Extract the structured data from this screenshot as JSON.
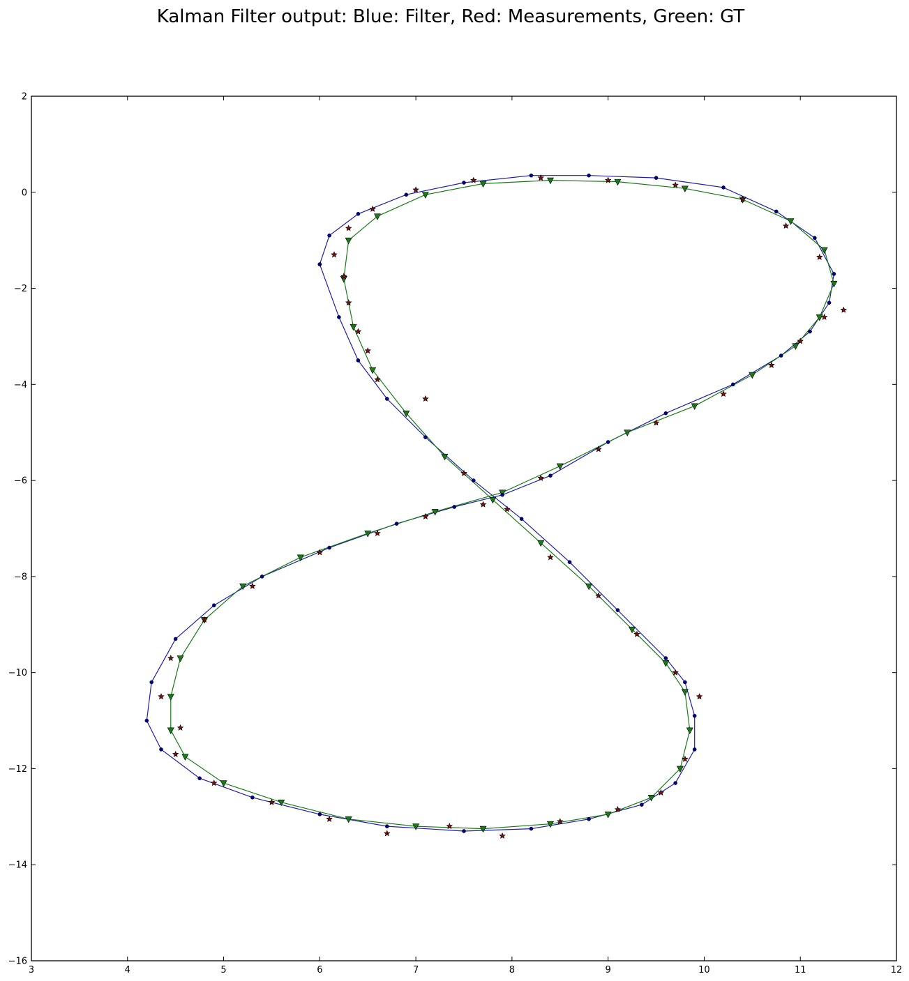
{
  "chart_data": {
    "type": "line",
    "title": "Kalman Filter output: Blue: Filter, Red: Measurements, Green: GT",
    "xlabel": "",
    "ylabel": "",
    "xlim": [
      3,
      12
    ],
    "ylim": [
      -16,
      2
    ],
    "xticks": [
      "3",
      "4",
      "5",
      "6",
      "7",
      "8",
      "9",
      "10",
      "11",
      "12"
    ],
    "yticks": [
      "2",
      "0",
      "−2",
      "−4",
      "−6",
      "−8",
      "−10",
      "−12",
      "−14",
      "−16"
    ],
    "grid": false,
    "colors": {
      "filter": "#1f1fa8",
      "filter_marker": "#000080",
      "measurement": "#7a1010",
      "gt": "#1a7a1a"
    },
    "series": [
      {
        "name": "Filter",
        "marker": "dot",
        "points": [
          [
            6.0,
            -1.5
          ],
          [
            6.1,
            -0.9
          ],
          [
            6.4,
            -0.45
          ],
          [
            6.9,
            -0.05
          ],
          [
            7.5,
            0.2
          ],
          [
            8.2,
            0.35
          ],
          [
            8.8,
            0.35
          ],
          [
            9.5,
            0.3
          ],
          [
            10.2,
            0.1
          ],
          [
            10.75,
            -0.4
          ],
          [
            11.15,
            -0.95
          ],
          [
            11.35,
            -1.7
          ],
          [
            11.3,
            -2.3
          ],
          [
            11.1,
            -2.9
          ],
          [
            10.8,
            -3.4
          ],
          [
            10.3,
            -4.0
          ],
          [
            9.6,
            -4.6
          ],
          [
            9.0,
            -5.2
          ],
          [
            8.4,
            -5.9
          ],
          [
            7.9,
            -6.3
          ],
          [
            7.4,
            -6.55
          ],
          [
            6.8,
            -6.9
          ],
          [
            6.1,
            -7.4
          ],
          [
            5.4,
            -8.0
          ],
          [
            4.9,
            -8.6
          ],
          [
            4.5,
            -9.3
          ],
          [
            4.25,
            -10.2
          ],
          [
            4.2,
            -11.0
          ],
          [
            4.35,
            -11.6
          ],
          [
            4.75,
            -12.2
          ],
          [
            5.3,
            -12.6
          ],
          [
            6.0,
            -12.95
          ],
          [
            6.7,
            -13.2
          ],
          [
            7.5,
            -13.3
          ],
          [
            8.2,
            -13.25
          ],
          [
            8.8,
            -13.05
          ],
          [
            9.35,
            -12.75
          ],
          [
            9.7,
            -12.3
          ],
          [
            9.9,
            -11.6
          ],
          [
            9.9,
            -10.9
          ],
          [
            9.8,
            -10.2
          ],
          [
            9.6,
            -9.7
          ],
          [
            9.1,
            -8.7
          ],
          [
            8.6,
            -7.7
          ],
          [
            8.1,
            -6.8
          ],
          [
            7.6,
            -6.0
          ],
          [
            7.1,
            -5.1
          ],
          [
            6.7,
            -4.3
          ],
          [
            6.4,
            -3.5
          ],
          [
            6.2,
            -2.6
          ],
          [
            6.0,
            -1.5
          ]
        ]
      },
      {
        "name": "Measurements",
        "marker": "star",
        "points": [
          [
            6.15,
            -1.3
          ],
          [
            6.3,
            -0.75
          ],
          [
            6.55,
            -0.35
          ],
          [
            7.0,
            0.05
          ],
          [
            7.6,
            0.25
          ],
          [
            8.3,
            0.3
          ],
          [
            9.0,
            0.25
          ],
          [
            9.7,
            0.15
          ],
          [
            10.4,
            -0.15
          ],
          [
            10.85,
            -0.7
          ],
          [
            11.2,
            -1.35
          ],
          [
            11.45,
            -2.45
          ],
          [
            11.25,
            -2.6
          ],
          [
            11.0,
            -3.1
          ],
          [
            10.7,
            -3.6
          ],
          [
            10.2,
            -4.2
          ],
          [
            9.5,
            -4.8
          ],
          [
            8.9,
            -5.35
          ],
          [
            8.3,
            -5.95
          ],
          [
            7.7,
            -6.5
          ],
          [
            7.1,
            -6.75
          ],
          [
            6.6,
            -7.1
          ],
          [
            6.0,
            -7.5
          ],
          [
            5.3,
            -8.2
          ],
          [
            4.8,
            -8.9
          ],
          [
            4.45,
            -9.7
          ],
          [
            4.35,
            -10.5
          ],
          [
            4.55,
            -11.15
          ],
          [
            4.5,
            -11.7
          ],
          [
            4.9,
            -12.3
          ],
          [
            5.5,
            -12.7
          ],
          [
            6.1,
            -13.05
          ],
          [
            6.7,
            -13.35
          ],
          [
            7.35,
            -13.2
          ],
          [
            7.9,
            -13.4
          ],
          [
            8.5,
            -13.1
          ],
          [
            9.1,
            -12.85
          ],
          [
            9.55,
            -12.5
          ],
          [
            9.8,
            -11.8
          ],
          [
            9.95,
            -10.5
          ],
          [
            9.7,
            -10.0
          ],
          [
            9.3,
            -9.2
          ],
          [
            8.9,
            -8.4
          ],
          [
            8.4,
            -7.6
          ],
          [
            7.95,
            -6.6
          ],
          [
            7.5,
            -5.85
          ],
          [
            7.1,
            -4.3
          ],
          [
            6.6,
            -3.9
          ],
          [
            6.5,
            -3.3
          ],
          [
            6.4,
            -2.9
          ],
          [
            6.3,
            -2.3
          ],
          [
            6.25,
            -1.75
          ]
        ]
      },
      {
        "name": "GT",
        "marker": "triangle",
        "points": [
          [
            6.25,
            -1.8
          ],
          [
            6.3,
            -1.0
          ],
          [
            6.6,
            -0.5
          ],
          [
            7.1,
            -0.05
          ],
          [
            7.7,
            0.18
          ],
          [
            8.4,
            0.25
          ],
          [
            9.1,
            0.22
          ],
          [
            9.8,
            0.08
          ],
          [
            10.4,
            -0.15
          ],
          [
            10.9,
            -0.6
          ],
          [
            11.25,
            -1.2
          ],
          [
            11.35,
            -1.9
          ],
          [
            11.2,
            -2.6
          ],
          [
            10.95,
            -3.2
          ],
          [
            10.5,
            -3.8
          ],
          [
            9.9,
            -4.45
          ],
          [
            9.2,
            -5.0
          ],
          [
            8.5,
            -5.7
          ],
          [
            7.9,
            -6.25
          ],
          [
            7.2,
            -6.65
          ],
          [
            6.5,
            -7.1
          ],
          [
            5.8,
            -7.6
          ],
          [
            5.2,
            -8.2
          ],
          [
            4.8,
            -8.9
          ],
          [
            4.55,
            -9.7
          ],
          [
            4.45,
            -10.5
          ],
          [
            4.45,
            -11.2
          ],
          [
            4.6,
            -11.75
          ],
          [
            5.0,
            -12.3
          ],
          [
            5.6,
            -12.7
          ],
          [
            6.3,
            -13.05
          ],
          [
            7.0,
            -13.2
          ],
          [
            7.7,
            -13.25
          ],
          [
            8.4,
            -13.15
          ],
          [
            9.0,
            -12.95
          ],
          [
            9.45,
            -12.6
          ],
          [
            9.75,
            -12.0
          ],
          [
            9.85,
            -11.2
          ],
          [
            9.8,
            -10.4
          ],
          [
            9.6,
            -9.8
          ],
          [
            9.25,
            -9.1
          ],
          [
            8.8,
            -8.2
          ],
          [
            8.3,
            -7.3
          ],
          [
            7.8,
            -6.4
          ],
          [
            7.3,
            -5.5
          ],
          [
            6.9,
            -4.6
          ],
          [
            6.55,
            -3.7
          ],
          [
            6.35,
            -2.8
          ],
          [
            6.25,
            -1.8
          ]
        ]
      }
    ]
  }
}
